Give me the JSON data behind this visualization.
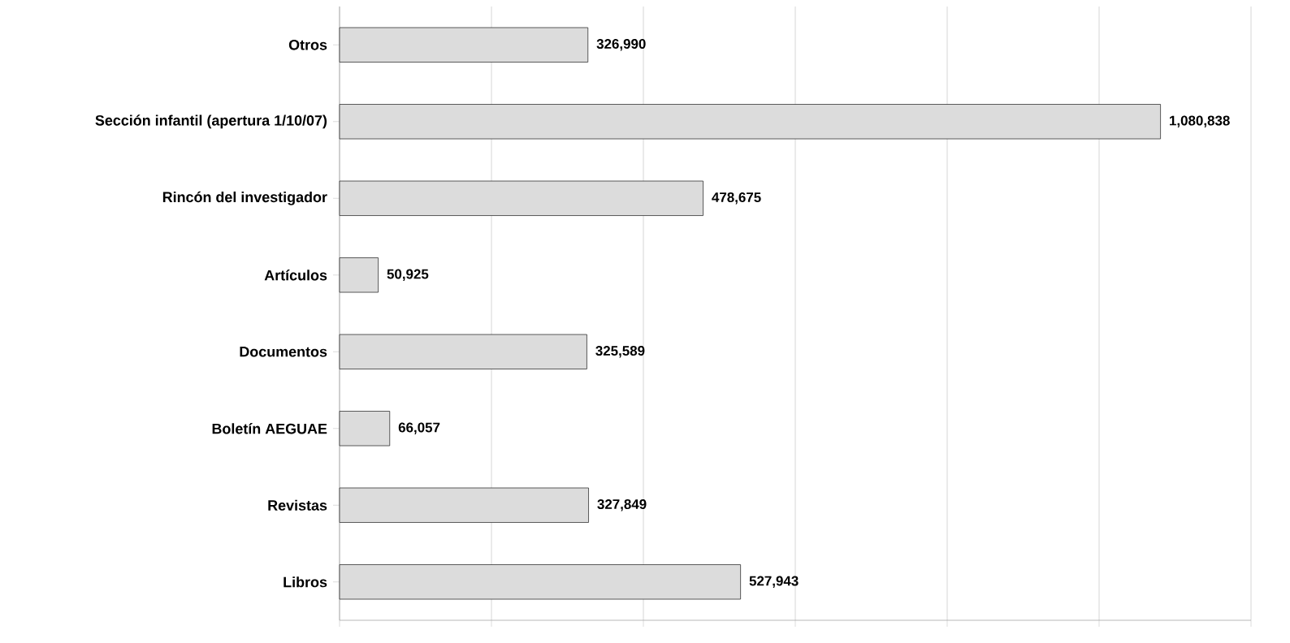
{
  "chart_data": {
    "type": "bar",
    "orientation": "horizontal",
    "categories": [
      "Otros",
      "Sección infantil (apertura 1/10/07)",
      "Rincón del investigador",
      "Artículos",
      "Documentos",
      "Boletín AEGUAE",
      "Revistas",
      "Libros"
    ],
    "values": [
      326990,
      1080838,
      478675,
      50925,
      325589,
      66057,
      327849,
      527943
    ],
    "value_labels": [
      "326,990",
      "1,080,838",
      "478,675",
      "50,925",
      "325,589",
      "66,057",
      "327,849",
      "527,943"
    ],
    "color": "#dcdcdc",
    "xlim": [
      0,
      1200000
    ],
    "xticks": [
      {
        "value": 0,
        "label": null
      },
      {
        "value": 200000,
        "label": null
      },
      {
        "value": 400000,
        "label": null
      },
      {
        "value": 600000,
        "label": null
      },
      {
        "value": 800000,
        "label": null
      },
      {
        "value": 1000000,
        "label": null
      },
      {
        "value": 1200000,
        "label": null
      }
    ],
    "tick_labels": "y",
    "grid": "x"
  }
}
